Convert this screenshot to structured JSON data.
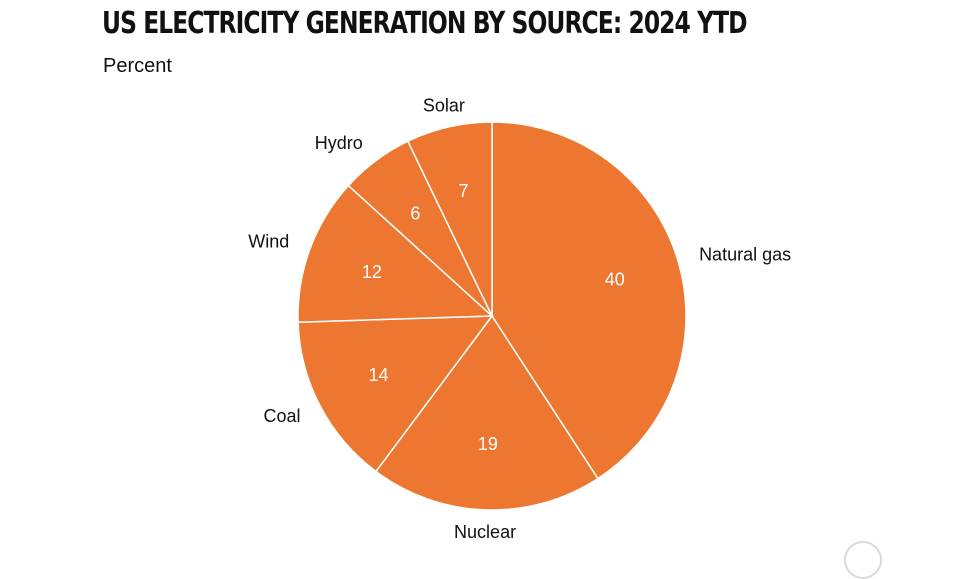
{
  "chart_data": {
    "type": "pie",
    "title": "US ELECTRICITY GENERATION BY SOURCE: 2024 YTD",
    "subtitle": "Percent",
    "slices": [
      {
        "label": "Natural gas",
        "value": 40
      },
      {
        "label": "Nuclear",
        "value": 19
      },
      {
        "label": "Coal",
        "value": 14
      },
      {
        "label": "Wind",
        "value": 12
      },
      {
        "label": "Hydro",
        "value": 6
      },
      {
        "label": "Solar",
        "value": 7
      }
    ],
    "slice_color": "#ED7731",
    "separator_color": "#FFFFFF",
    "start": "12 o'clock",
    "direction": "clockwise",
    "value_labels": "inside",
    "category_labels": "outside",
    "legend": "none"
  }
}
